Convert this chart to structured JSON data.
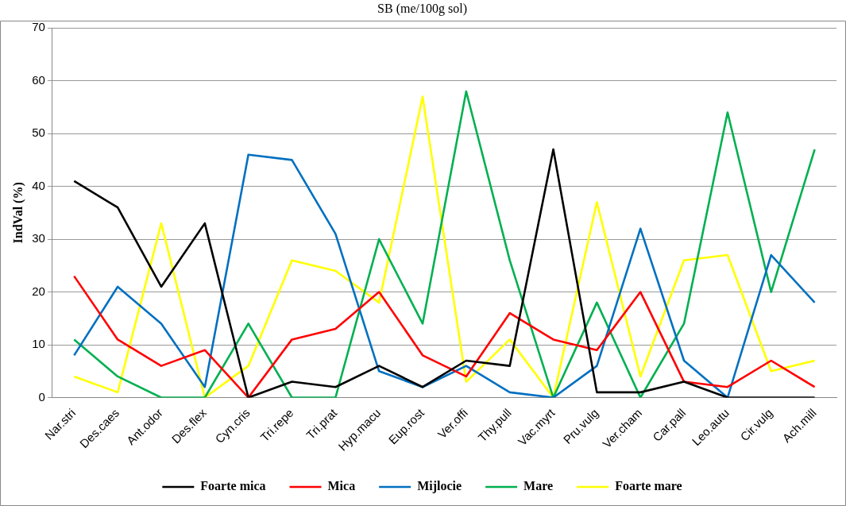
{
  "chart_data": {
    "type": "line",
    "title": "SB (me/100g sol)",
    "ylabel": "IndVal (%)",
    "categories": [
      "Nar.stri",
      "Des.caes",
      "Ant.odor",
      "Des.flex",
      "Cyn.cris",
      "Tri.repe",
      "Tri.prat",
      "Hyp.macu",
      "Eup.rost",
      "Ver.offi",
      "Thy.pull",
      "Vac.myrt",
      "Pru.vulg",
      "Ver.cham",
      "Car.pall",
      "Leo.autu",
      "Cir.vulg",
      "Ach.mill"
    ],
    "series": [
      {
        "name": "Foarte mica",
        "color": "#000000",
        "values": [
          41,
          36,
          21,
          33,
          0,
          3,
          2,
          6,
          2,
          7,
          6,
          47,
          1,
          1,
          3,
          0,
          0,
          0
        ]
      },
      {
        "name": "Mica",
        "color": "#ff0000",
        "values": [
          23,
          11,
          6,
          9,
          0,
          11,
          13,
          20,
          8,
          4,
          16,
          11,
          9,
          20,
          3,
          2,
          7,
          2
        ]
      },
      {
        "name": "Mijlocie",
        "color": "#0070c0",
        "values": [
          8,
          21,
          14,
          2,
          46,
          45,
          31,
          5,
          2,
          6,
          1,
          0,
          6,
          32,
          7,
          0,
          27,
          18
        ]
      },
      {
        "name": "Mare",
        "color": "#00b050",
        "values": [
          11,
          4,
          0,
          0,
          14,
          0,
          0,
          30,
          14,
          58,
          26,
          0,
          18,
          0,
          14,
          54,
          20,
          47
        ]
      },
      {
        "name": "Foarte mare",
        "color": "#ffff00",
        "values": [
          4,
          1,
          33,
          0,
          6,
          26,
          24,
          18,
          57,
          3,
          11,
          0,
          37,
          4,
          26,
          27,
          5,
          7
        ]
      }
    ],
    "ylim": [
      0,
      70
    ],
    "yticks": [
      0,
      10,
      20,
      30,
      40,
      50,
      60,
      70
    ],
    "grid": "y",
    "legend": "bottom",
    "marker": "none",
    "line_style": "solid"
  }
}
